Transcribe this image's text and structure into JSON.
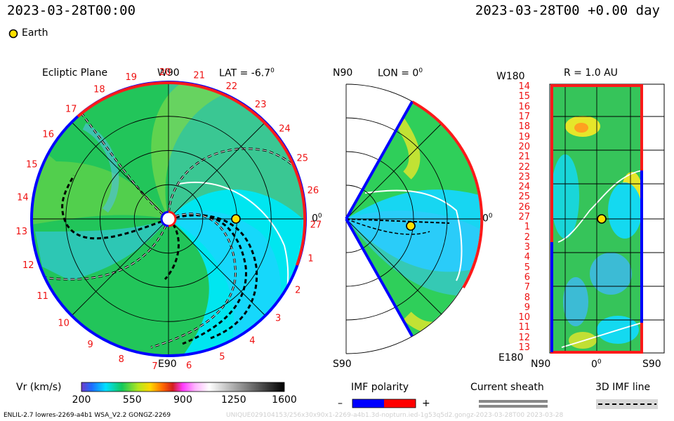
{
  "header": {
    "date_left": "2023-03-28T00:00",
    "date_right": "2023-03-28T00 +0.00 day"
  },
  "legend_earth": "Earth",
  "panel1": {
    "title": "Ecliptic Plane",
    "top_label": "W90",
    "lat_label": "LAT = -6.7",
    "lat_deg": "0",
    "bottom_label": "E90",
    "right_label": "0",
    "right_deg": "0",
    "sector_numbers": [
      "27",
      "1",
      "2",
      "3",
      "4",
      "5",
      "6",
      "7",
      "8",
      "9",
      "10",
      "11",
      "12",
      "13",
      "14",
      "15",
      "16",
      "17",
      "18",
      "19",
      "20",
      "21",
      "22",
      "23",
      "24",
      "25",
      "26"
    ]
  },
  "panel2": {
    "top_label": "N90",
    "lon_label": "LON = 0",
    "lon_deg": "0",
    "bottom_label": "S90",
    "right_label": "0",
    "right_deg": "0"
  },
  "panel3": {
    "top_left_label": "W180",
    "r_label": "R = 1.0 AU",
    "bottom_left_label": "E180",
    "x_tick_left": "N90",
    "x_tick_mid": "0",
    "x_tick_mid_deg": "0",
    "x_tick_right": "S90",
    "y_ticks": [
      "14",
      "15",
      "16",
      "17",
      "18",
      "19",
      "20",
      "21",
      "22",
      "23",
      "24",
      "25",
      "26",
      "27",
      "1",
      "2",
      "3",
      "4",
      "5",
      "6",
      "7",
      "8",
      "9",
      "10",
      "11",
      "12",
      "13"
    ]
  },
  "colorbar": {
    "label": "Vr (km/s)",
    "ticks": [
      "200",
      "550",
      "900",
      "1250",
      "1600"
    ]
  },
  "imf": {
    "title": "IMF polarity",
    "minus": "–",
    "plus": "+",
    "neg_color": "#0000ff",
    "pos_color": "#ff0000"
  },
  "sheath_title": "Current sheath",
  "imf_line_title": "3D IMF line",
  "footer_left": "ENLIL-2.7 lowres-2269-a4b1 WSA_V2.2 GONGZ-2269",
  "footer_right": "UNIQUE029104153/256x30x90x1-2269-a4b1.3d-nopturn.ied-1g53q5d2.gongz-2023-03-28T00 2023-03-28",
  "chart_data": [
    {
      "type": "heatmap",
      "title": "Ecliptic Plane",
      "variable": "Vr (km/s)",
      "range": [
        200,
        1600
      ],
      "polar": true,
      "earth_marker": true
    },
    {
      "type": "heatmap",
      "title": "LON = 0",
      "variable": "Vr (km/s)",
      "range": [
        200,
        1600
      ],
      "polar": true,
      "earth_marker": true
    },
    {
      "type": "heatmap",
      "title": "R = 1.0 AU",
      "variable": "Vr (km/s)",
      "range": [
        200,
        1600
      ],
      "earth_marker": true
    }
  ]
}
